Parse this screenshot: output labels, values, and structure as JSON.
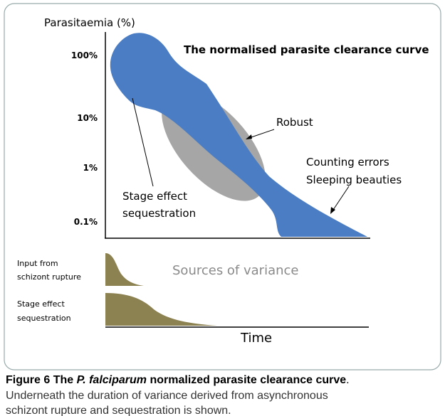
{
  "figure": {
    "y_axis_label": "Parasitaemia (%)",
    "title": "The normalised parasite clearance curve",
    "y_labels": [
      "100%",
      "10%",
      "1%",
      "0.1%"
    ],
    "annotations": {
      "robust": "Robust",
      "counting": [
        "Counting errors",
        "Sleeping beauties"
      ],
      "stage": [
        "Stage effect",
        "sequestration"
      ]
    },
    "lower_panel": {
      "input": [
        "Input from",
        "schizont rupture"
      ],
      "stage": [
        "Stage effect",
        "sequestration"
      ],
      "sources": "Sources of variance"
    },
    "x_axis_label": "Time"
  },
  "caption": {
    "label": "Figure 6",
    "title_before": "The",
    "species": "P. falciparum",
    "title_after": "normalized parasite clearance curve",
    "end": ".",
    "lines": [
      "Underneath the duration of variance derived from asynchronous",
      "schizont rupture and sequestration is shown."
    ]
  }
}
